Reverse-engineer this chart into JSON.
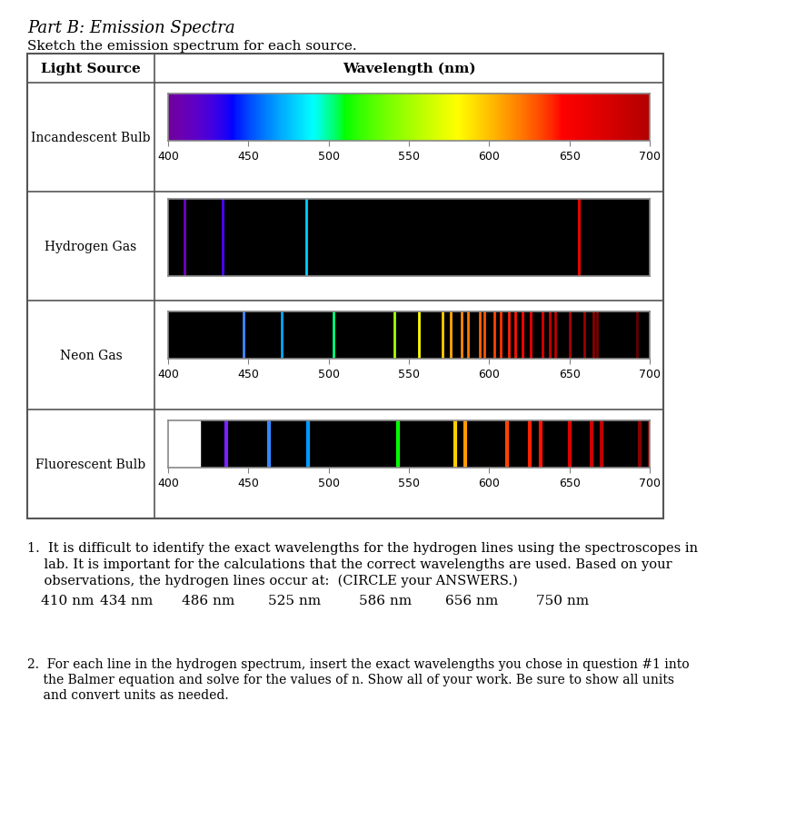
{
  "title": "Part B: Emission Spectra",
  "subtitle": "Sketch the emission spectrum for each source.",
  "col1_header": "Light Source",
  "col2_header": "Wavelength (nm)",
  "light_sources": [
    "Incandescent Bulb",
    "Hydrogen Gas",
    "Neon Gas",
    "Fluorescent Bulb"
  ],
  "wl_range": [
    400,
    700
  ],
  "wl_ticks": [
    400,
    450,
    500,
    550,
    600,
    650,
    700
  ],
  "hydrogen_lines": [
    {
      "wl": 410,
      "color": "#7000c0"
    },
    {
      "wl": 434,
      "color": "#5000ff"
    },
    {
      "wl": 486,
      "color": "#00d0ff"
    },
    {
      "wl": 656,
      "color": "#ff0000"
    }
  ],
  "neon_lines": [
    {
      "wl": 447,
      "color": "#4488ff"
    },
    {
      "wl": 471,
      "color": "#00aaff"
    },
    {
      "wl": 503,
      "color": "#00ff80"
    },
    {
      "wl": 541,
      "color": "#aaff00"
    },
    {
      "wl": 556,
      "color": "#ffff00"
    },
    {
      "wl": 571,
      "color": "#ffcc00"
    },
    {
      "wl": 576,
      "color": "#ffaa00"
    },
    {
      "wl": 583,
      "color": "#ff8800"
    },
    {
      "wl": 587,
      "color": "#ff7700"
    },
    {
      "wl": 594,
      "color": "#ff6600"
    },
    {
      "wl": 597,
      "color": "#ff5500"
    },
    {
      "wl": 603,
      "color": "#ff4400"
    },
    {
      "wl": 607,
      "color": "#ff3300"
    },
    {
      "wl": 612,
      "color": "#ff2200"
    },
    {
      "wl": 616,
      "color": "#ff1100"
    },
    {
      "wl": 621,
      "color": "#ff0000"
    },
    {
      "wl": 626,
      "color": "#ee0000"
    },
    {
      "wl": 633,
      "color": "#dd0000"
    },
    {
      "wl": 638,
      "color": "#cc0000"
    },
    {
      "wl": 641,
      "color": "#bb0000"
    },
    {
      "wl": 650,
      "color": "#aa0000"
    },
    {
      "wl": 659,
      "color": "#990000"
    },
    {
      "wl": 665,
      "color": "#880000"
    },
    {
      "wl": 667,
      "color": "#770000"
    },
    {
      "wl": 692,
      "color": "#660000"
    }
  ],
  "fluorescent_lines": [
    {
      "wl": 436,
      "color": "#7722ff"
    },
    {
      "wl": 463,
      "color": "#3388ff"
    },
    {
      "wl": 487,
      "color": "#0099ff"
    },
    {
      "wl": 543,
      "color": "#00ff00"
    },
    {
      "wl": 579,
      "color": "#ffcc00"
    },
    {
      "wl": 585,
      "color": "#ff9900"
    },
    {
      "wl": 611,
      "color": "#ff4400"
    },
    {
      "wl": 625,
      "color": "#ff2200"
    },
    {
      "wl": 632,
      "color": "#ff1100"
    },
    {
      "wl": 650,
      "color": "#dd0000"
    },
    {
      "wl": 664,
      "color": "#cc0000"
    },
    {
      "wl": 670,
      "color": "#bb0000"
    },
    {
      "wl": 694,
      "color": "#880000"
    },
    {
      "wl": 700,
      "color": "#770000"
    }
  ],
  "q1_text": "1.  It is difficult to identify the exact wavelengths for the hydrogen lines using the spectroscopes in\n    lab. It is important for the calculations that the correct wavelengths are used. Based on your\n    observations, the hydrogen lines occur at:  (CIRCLE your ANSWERS.)",
  "q1_values": [
    "410 nm",
    "434 nm",
    "486 nm",
    "525 nm",
    "586 nm",
    "656 nm",
    "750 nm"
  ],
  "q2_text": "2.  For each line in the hydrogen spectrum, insert the exact wavelengths you chose in question #1 into\n    the Balmer equation and solve for the values of n. Show all of your work. Be sure to show all units\n    and convert units as needed.",
  "q2_underline": "all",
  "background_color": "#ffffff",
  "table_border_color": "#555555",
  "spectrum_border_color": "#888888"
}
